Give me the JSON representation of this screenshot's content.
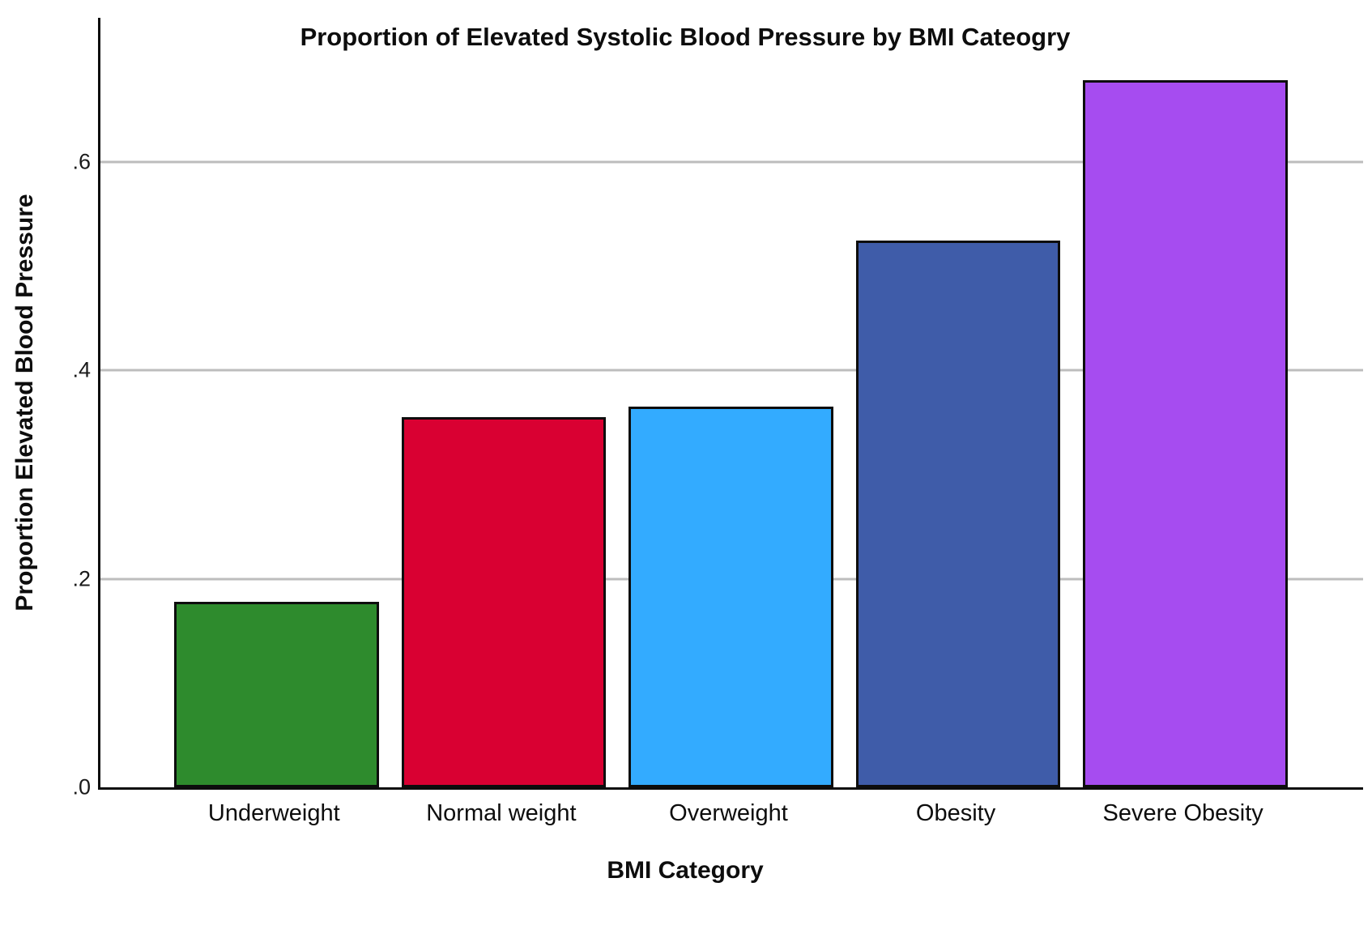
{
  "chart_data": {
    "type": "bar",
    "title": "Proportion of Elevated Systolic Blood Pressure by BMI Cateogry",
    "xlabel": "BMI Category",
    "ylabel": "Proportion Elevated Blood Pressure",
    "categories": [
      "Underweight",
      "Normal weight",
      "Overweight",
      "Obesity",
      "Severe Obesity"
    ],
    "values": [
      0.178,
      0.355,
      0.365,
      0.524,
      0.678
    ],
    "bar_colors": [
      "#2E8B2D",
      "#D90032",
      "#33ABFF",
      "#3F5CA9",
      "#A64CF0"
    ],
    "bar_border_color": "#0d0d0d",
    "ytick_labels": [
      ".0",
      ".2",
      ".4",
      ".6"
    ],
    "ytick_values": [
      0,
      0.2,
      0.4,
      0.6
    ],
    "ylim": [
      0,
      0.738
    ],
    "grid": "horizontal",
    "gridline_color": "#bdbdbd",
    "axis_color": "#0d0d0d",
    "legend": "none",
    "background_color": "#ffffff"
  }
}
